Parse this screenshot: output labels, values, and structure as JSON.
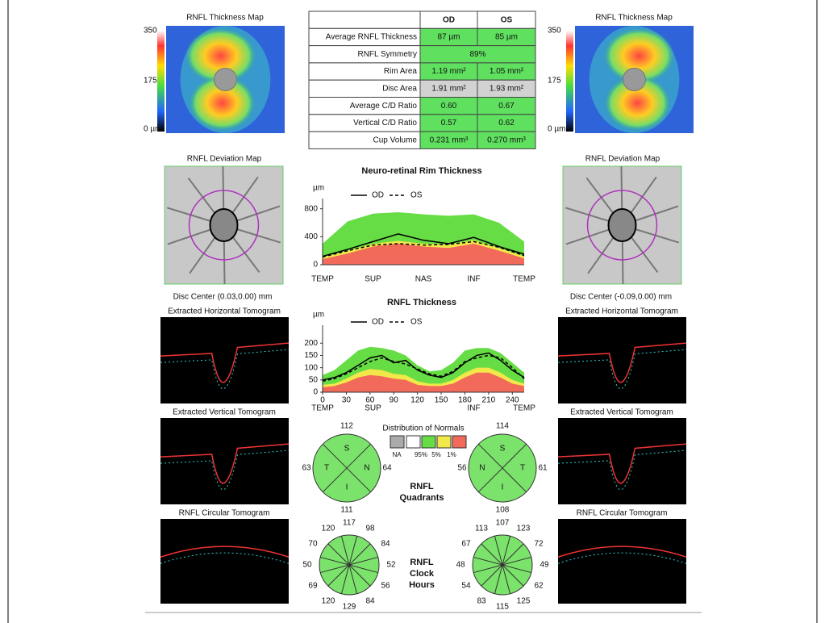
{
  "left_panel": {
    "thickness_title": "RNFL Thickness Map",
    "scale": [
      "350",
      "175",
      "0 µm"
    ],
    "deviation_title": "RNFL Deviation Map",
    "disc_center": "Disc Center  (0.03,0.00) mm",
    "horizontal_title": "Extracted Horizontal Tomogram",
    "vertical_title": "Extracted Vertical Tomogram",
    "circular_title": "RNFL Circular Tomogram"
  },
  "right_panel": {
    "thickness_title": "RNFL Thickness Map",
    "scale": [
      "350",
      "175",
      "0 µm"
    ],
    "deviation_title": "RNFL Deviation Map",
    "disc_center": "Disc Center  (-0.09,0.00) mm",
    "horizontal_title": "Extracted Horizontal Tomogram",
    "vertical_title": "Extracted Vertical Tomogram",
    "circular_title": "RNFL Circular Tomogram"
  },
  "table": {
    "header": [
      "OD",
      "OS"
    ],
    "rows": [
      {
        "label": "Average RNFL Thickness",
        "od": "87 µm",
        "os": "85 µm",
        "color": "#5fe05f"
      },
      {
        "label": "RNFL Symmetry",
        "both": "89%",
        "color": "#5fe05f"
      },
      {
        "label": "Rim Area",
        "od": "1.19 mm²",
        "os": "1.05 mm²",
        "color": "#5fe05f"
      },
      {
        "label": "Disc Area",
        "od": "1.91 mm²",
        "os": "1.93 mm²",
        "color": "#d2d2d2"
      },
      {
        "label": "Average C/D Ratio",
        "od": "0.60",
        "os": "0.67",
        "color": "#5fe05f"
      },
      {
        "label": "Vertical C/D Ratio",
        "od": "0.57",
        "os": "0.62",
        "color": "#5fe05f"
      },
      {
        "label": "Cup Volume",
        "od": "0.231 mm³",
        "os": "0.270 mm³",
        "color": "#5fe05f"
      }
    ]
  },
  "rim_chart": {
    "type": "line",
    "title": "Neuro-retinal Rim Thickness",
    "y_label": "µm",
    "categories": [
      "TEMP",
      null,
      "SUP",
      null,
      "NAS",
      null,
      "INF",
      null,
      "TEMP"
    ],
    "ylim": [
      0,
      900
    ],
    "yticks": [
      0,
      400,
      800
    ],
    "bands": [
      {
        "color": "#66dd44",
        "values": [
          300,
          620,
          730,
          750,
          720,
          700,
          720,
          600,
          330
        ]
      },
      {
        "color": "#f2e84a",
        "values": [
          110,
          200,
          300,
          340,
          300,
          290,
          350,
          240,
          120
        ]
      },
      {
        "color": "#f26a5a",
        "values": [
          80,
          160,
          260,
          300,
          260,
          240,
          300,
          200,
          90
        ]
      }
    ],
    "series": [
      {
        "name": "OD",
        "color": "#000000",
        "dash": false,
        "values": [
          120,
          220,
          330,
          440,
          350,
          300,
          390,
          260,
          150
        ]
      },
      {
        "name": "OS",
        "color": "#000000",
        "dash": true,
        "values": [
          110,
          200,
          280,
          300,
          280,
          290,
          330,
          250,
          130
        ]
      }
    ]
  },
  "rnfl_chart": {
    "type": "line",
    "title": "RNFL Thickness",
    "y_label": "µm",
    "x": [
      0,
      15,
      30,
      45,
      60,
      75,
      90,
      105,
      120,
      135,
      150,
      165,
      180,
      195,
      210,
      225,
      240,
      255
    ],
    "xlim": [
      0,
      255
    ],
    "xticks": [
      0,
      30,
      60,
      90,
      120,
      150,
      180,
      210,
      240
    ],
    "regions": [
      "TEMP",
      "SUP",
      "INF",
      "TEMP"
    ],
    "ylim": [
      0,
      260
    ],
    "yticks": [
      0,
      50,
      100,
      150,
      200
    ],
    "bands": [
      {
        "color": "#66dd44",
        "values": [
          70,
          90,
          130,
          170,
          185,
          180,
          170,
          150,
          110,
          85,
          90,
          120,
          170,
          180,
          180,
          160,
          120,
          80
        ]
      },
      {
        "color": "#f2e84a",
        "values": [
          30,
          35,
          55,
          80,
          95,
          90,
          75,
          70,
          45,
          35,
          35,
          50,
          80,
          100,
          100,
          80,
          50,
          35
        ]
      },
      {
        "color": "#f26a5a",
        "values": [
          20,
          25,
          40,
          60,
          70,
          65,
          55,
          50,
          30,
          25,
          25,
          35,
          60,
          80,
          80,
          60,
          35,
          25
        ]
      }
    ],
    "series": [
      {
        "name": "OD",
        "color": "#000000",
        "dash": false,
        "values": [
          50,
          60,
          80,
          110,
          140,
          150,
          120,
          130,
          90,
          70,
          60,
          80,
          120,
          150,
          160,
          130,
          90,
          60
        ]
      },
      {
        "name": "OS",
        "color": "#000000",
        "dash": true,
        "values": [
          45,
          55,
          75,
          100,
          125,
          140,
          125,
          115,
          95,
          75,
          65,
          85,
          125,
          140,
          150,
          140,
          100,
          55
        ]
      }
    ]
  },
  "normals": {
    "title": "Distribution of Normals",
    "labels": [
      "NA",
      "95%",
      "5%",
      "1%"
    ],
    "colors": [
      "#aaaaaa",
      "#ffffff",
      "#66dd44",
      "#f2e84a",
      "#f26a5a"
    ]
  },
  "quadrants": {
    "title": [
      "RNFL",
      "Quadrants"
    ],
    "color": "#7be26b",
    "od": [
      {
        "label": "S",
        "value": "112"
      },
      {
        "label": "T",
        "value": "63"
      },
      {
        "label": "N",
        "value": "64"
      },
      {
        "label": "I",
        "value": "111"
      }
    ],
    "os": [
      {
        "label": "S",
        "value": "114"
      },
      {
        "label": "N",
        "value": "56"
      },
      {
        "label": "T",
        "value": "61"
      },
      {
        "label": "I",
        "value": "108"
      }
    ]
  },
  "clock_hours": {
    "title": [
      "RNFL",
      "Clock",
      "Hours"
    ],
    "color": "#7be26b",
    "od": [
      "117",
      "98",
      "84",
      "52",
      "56",
      "84",
      "129",
      "120",
      "69",
      "50",
      "70",
      "120"
    ],
    "os": [
      "107",
      "123",
      "72",
      "49",
      "62",
      "125",
      "115",
      "83",
      "54",
      "48",
      "67",
      "113"
    ]
  }
}
